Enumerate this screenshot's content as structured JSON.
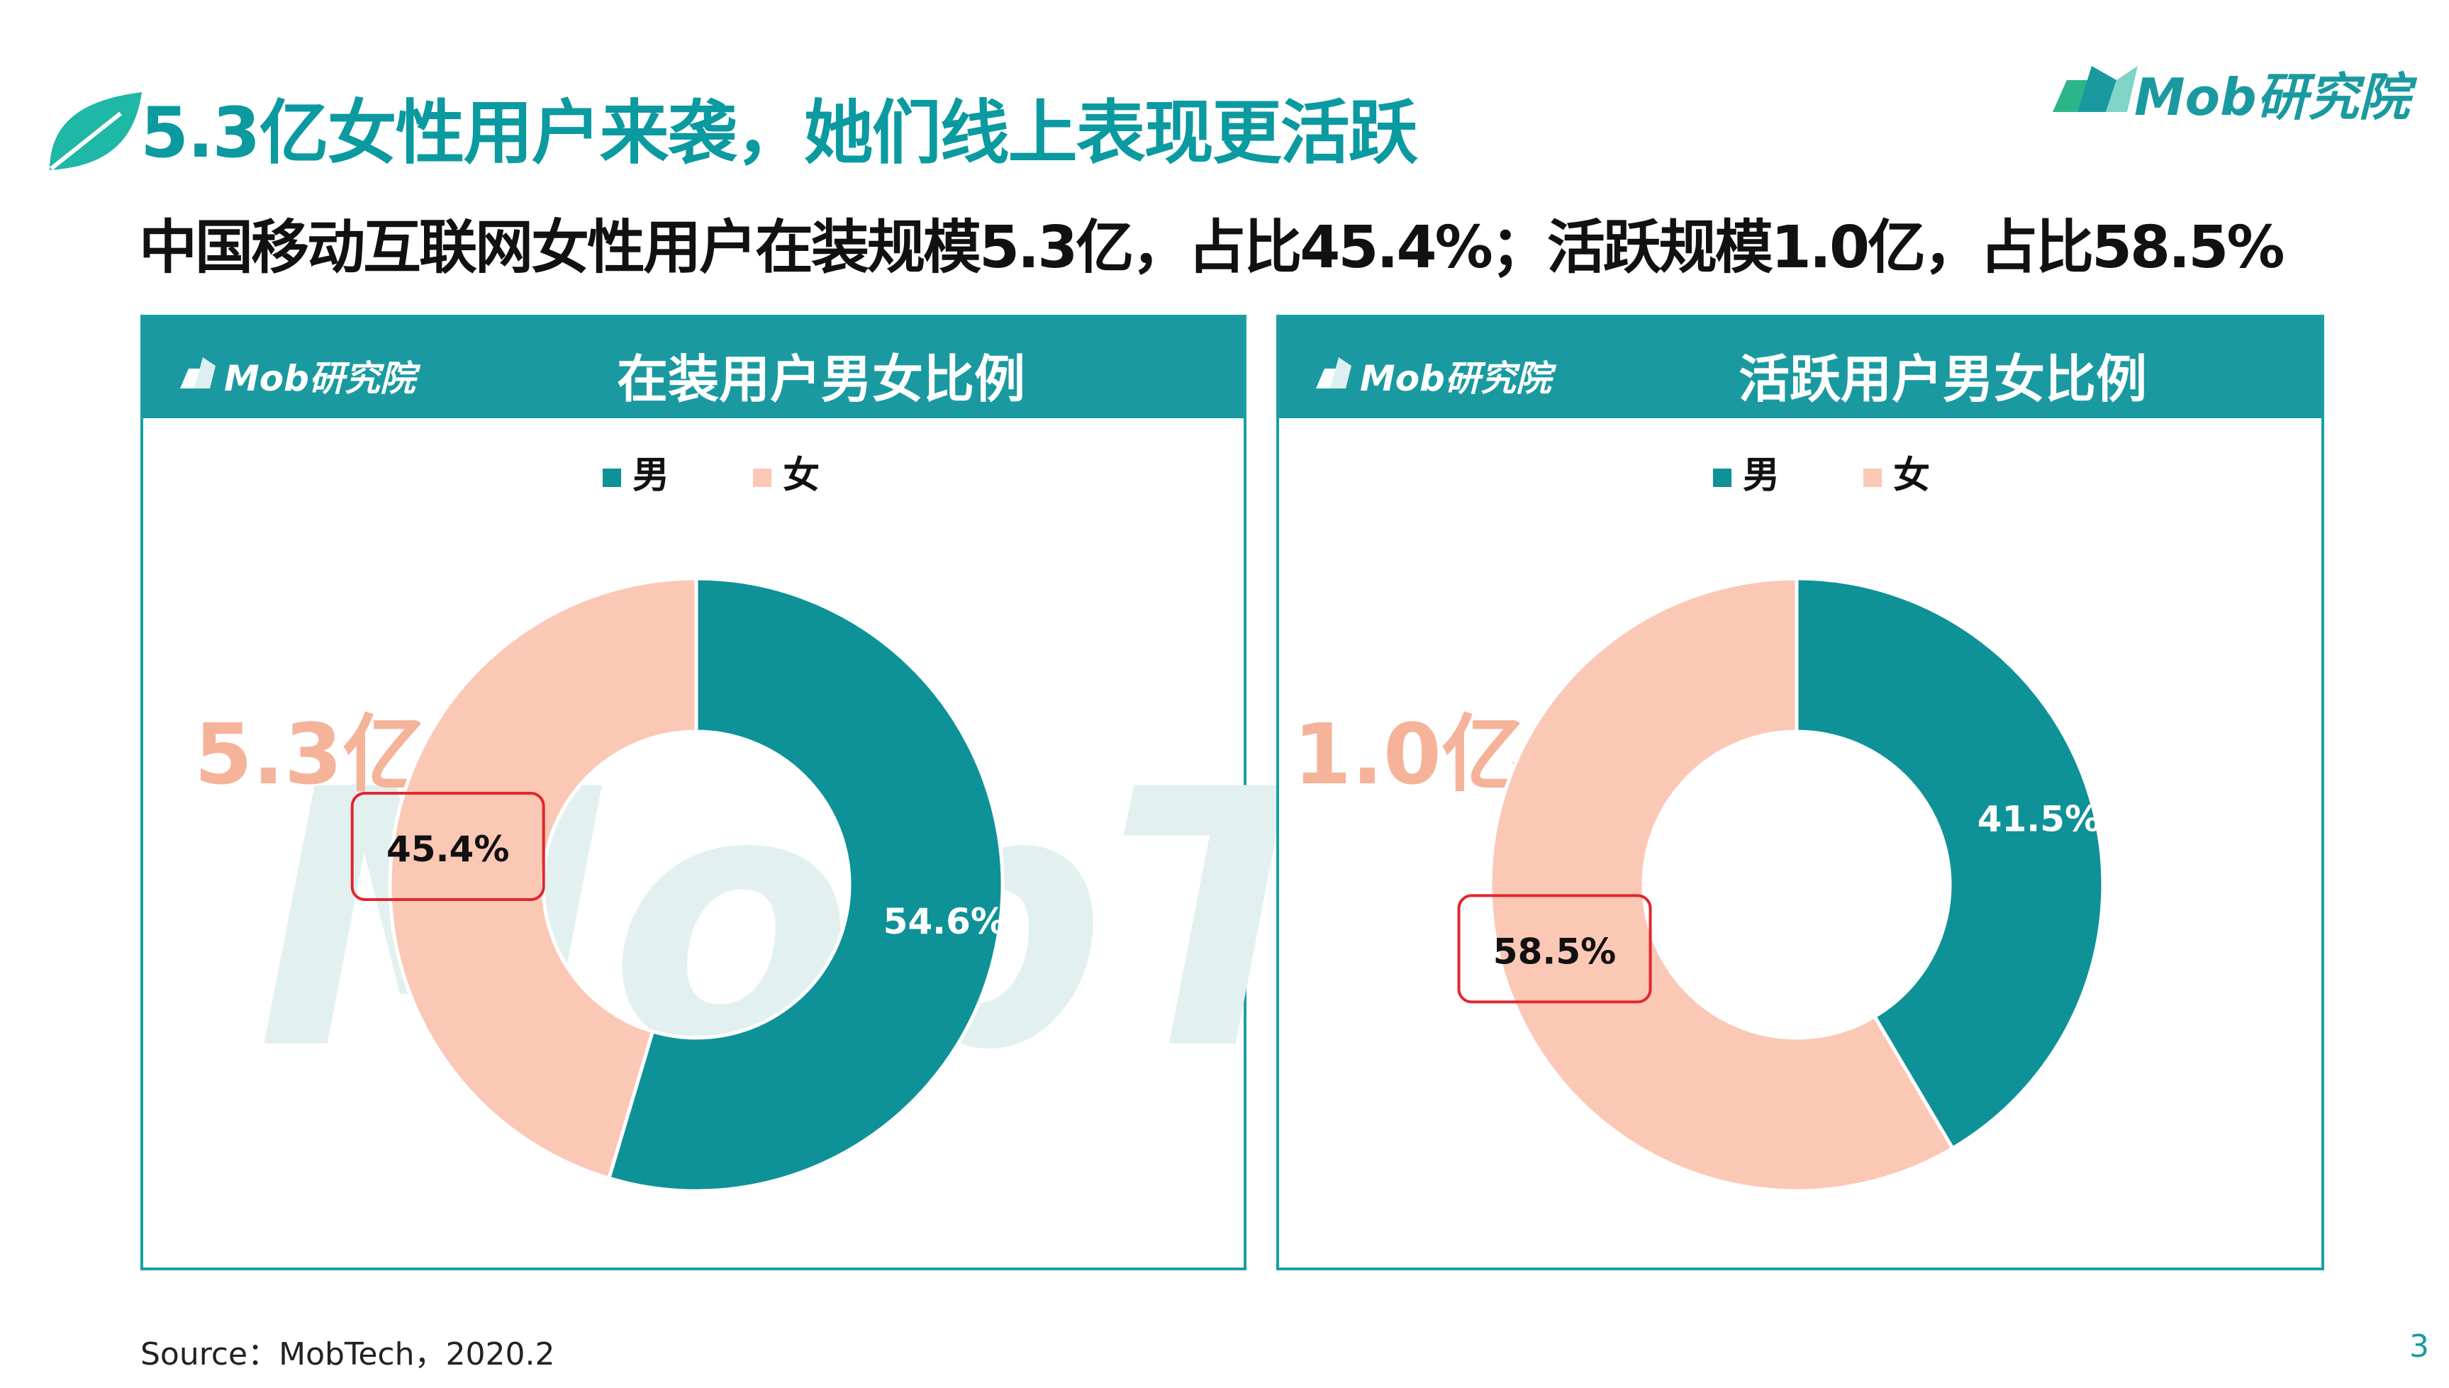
{
  "header": {
    "title": "5.3亿女性用户来袭，她们线上表现更活跃",
    "brand": "Mob研究院"
  },
  "subtitle": "中国移动互联网女性用户在装规模5.3亿，占比45.4%；活跃规模1.0亿，占比58.5%",
  "colors": {
    "accent": "#0b9aa0",
    "male": "#0e9297",
    "female": "#fbc8b6",
    "highlight": "#e0282e"
  },
  "chart_data": [
    {
      "type": "pie",
      "title": "在装用户男女比例",
      "total_label": "5.3亿",
      "legend": [
        "男",
        "女"
      ],
      "legend_position": "top",
      "series": [
        {
          "name": "男",
          "value": 54.6,
          "label": "54.6%"
        },
        {
          "name": "女",
          "value": 45.4,
          "label": "45.4%"
        }
      ],
      "highlighted": "女"
    },
    {
      "type": "pie",
      "title": "活跃用户男女比例",
      "total_label": "1.0亿",
      "legend": [
        "男",
        "女"
      ],
      "legend_position": "top",
      "series": [
        {
          "name": "男",
          "value": 41.5,
          "label": "41.5%"
        },
        {
          "name": "女",
          "value": 58.5,
          "label": "58.5%"
        }
      ],
      "highlighted": "女"
    }
  ],
  "footer": {
    "source": "Source：MobTech，2020.2",
    "page_number": "3"
  }
}
